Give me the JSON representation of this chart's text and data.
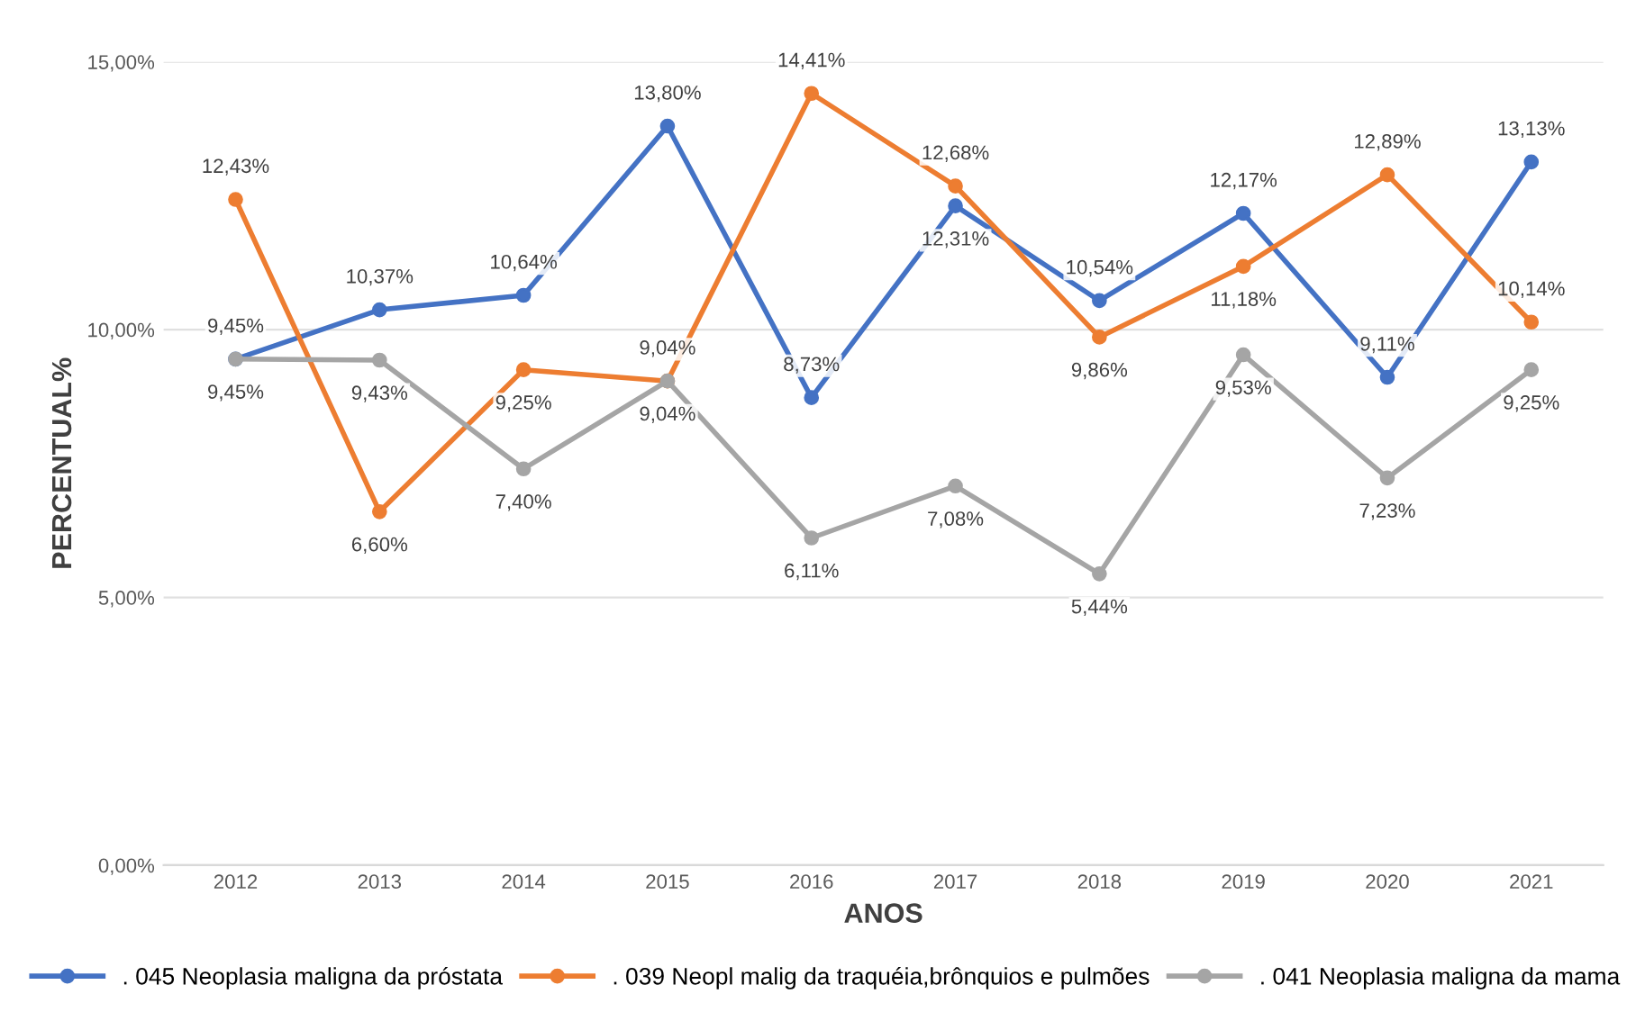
{
  "chart_data": {
    "type": "line",
    "xlabel": "ANOS",
    "ylabel": "PERCENTUAL%",
    "categories": [
      "2012",
      "2013",
      "2014",
      "2015",
      "2016",
      "2017",
      "2018",
      "2019",
      "2020",
      "2021"
    ],
    "series": [
      {
        "name": ". 045 Neoplasia maligna da próstata",
        "color": "#4472c4",
        "values": [
          9.45,
          10.37,
          10.64,
          13.8,
          8.73,
          12.31,
          10.54,
          12.17,
          9.11,
          13.13
        ],
        "value_labels": [
          "9,45%",
          "10,37%",
          "10,64%",
          "13,80%",
          "8,73%",
          "12,31%",
          "10,54%",
          "12,17%",
          "9,11%",
          "13,13%"
        ]
      },
      {
        "name": ". 039 Neopl malig da traquéia,brônquios e pulmões",
        "color": "#ed7d31",
        "values": [
          12.43,
          6.6,
          9.25,
          9.04,
          14.41,
          12.68,
          9.86,
          11.18,
          12.89,
          10.14
        ],
        "value_labels": [
          "12,43%",
          "6,60%",
          "9,25%",
          "9,04%",
          "14,41%",
          "12,68%",
          "9,86%",
          "11,18%",
          "12,89%",
          "10,14%"
        ]
      },
      {
        "name": ". 041 Neoplasia maligna da mama",
        "color": "#a5a5a5",
        "values": [
          9.45,
          9.43,
          7.4,
          9.04,
          6.11,
          7.08,
          5.44,
          9.53,
          7.23,
          9.25
        ],
        "value_labels": [
          "9,45%",
          "9,43%",
          "7,40%",
          "9,04%",
          "6,11%",
          "7,08%",
          "5,44%",
          "9,53%",
          "7,23%",
          "9,25%"
        ]
      }
    ],
    "ylim": [
      0,
      15
    ],
    "yticks": [
      {
        "value": 0,
        "label": "0,00%"
      },
      {
        "value": 5,
        "label": "5,00%"
      },
      {
        "value": 10,
        "label": "10,00%"
      },
      {
        "value": 15,
        "label": "15,00%"
      }
    ],
    "grid": "y",
    "legend": "bottom",
    "marker": "circle",
    "line_style": "solid"
  }
}
